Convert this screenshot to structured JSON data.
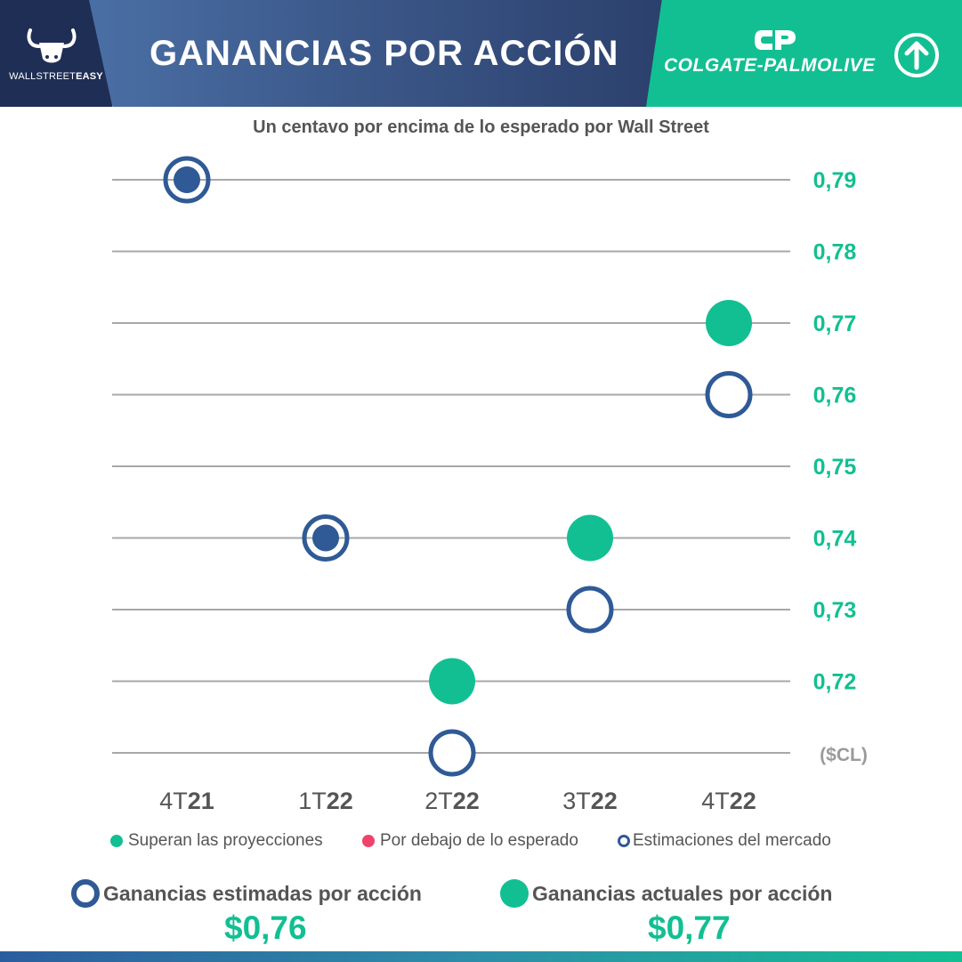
{
  "header": {
    "brand_name_light": "WALLSTREET",
    "brand_name_bold": "EASY",
    "title": "GANANCIAS POR ACCIÓN",
    "company": "COLGATE-PALMOLIVE",
    "brand_icon": "bull-icon",
    "company_icon": "colgate-cp-logo-icon",
    "trend_icon": "arrow-up-circle-icon"
  },
  "chart_data": {
    "type": "scatter",
    "title": "Un centavo por encima de lo esperado por Wall Street",
    "unit_label": "($CL)",
    "categories": [
      {
        "light": "4T",
        "bold": "21"
      },
      {
        "light": "1T",
        "bold": "22"
      },
      {
        "light": "2T",
        "bold": "22"
      },
      {
        "light": "3T",
        "bold": "22"
      },
      {
        "light": "4T",
        "bold": "22"
      }
    ],
    "y_ticks": [
      "0,79",
      "0,78",
      "0,77",
      "0,76",
      "0,75",
      "0,74",
      "0,73",
      "0,72"
    ],
    "y_tick_values": [
      0.79,
      0.78,
      0.77,
      0.76,
      0.75,
      0.74,
      0.73,
      0.72
    ],
    "ylim": [
      0.71,
      0.79
    ],
    "grid": true,
    "series": [
      {
        "name": "Estimaciones del mercado",
        "values": [
          0.79,
          0.74,
          0.71,
          0.73,
          0.76
        ]
      },
      {
        "name": "Superan las proyecciones",
        "values": [
          0.79,
          0.74,
          0.72,
          0.74,
          0.77
        ]
      }
    ],
    "colors": {
      "estimate": "#2f5a96",
      "beat": "#12bf92",
      "miss": "#f0436b",
      "grid": "#a8a8a8"
    }
  },
  "legend": [
    {
      "label": "Superan las proyecciones",
      "color": "#12bf92",
      "style": "filled"
    },
    {
      "label": "Por debajo de lo esperado",
      "color": "#f0436b",
      "style": "filled"
    },
    {
      "label": "Estimaciones del mercado",
      "color": "#2f5a96",
      "style": "ring"
    }
  ],
  "summary": {
    "estimated_label": "Ganancias estimadas por acción",
    "estimated_value": "$0,76",
    "actual_label": "Ganancias actuales por acción",
    "actual_value": "$0,77"
  }
}
